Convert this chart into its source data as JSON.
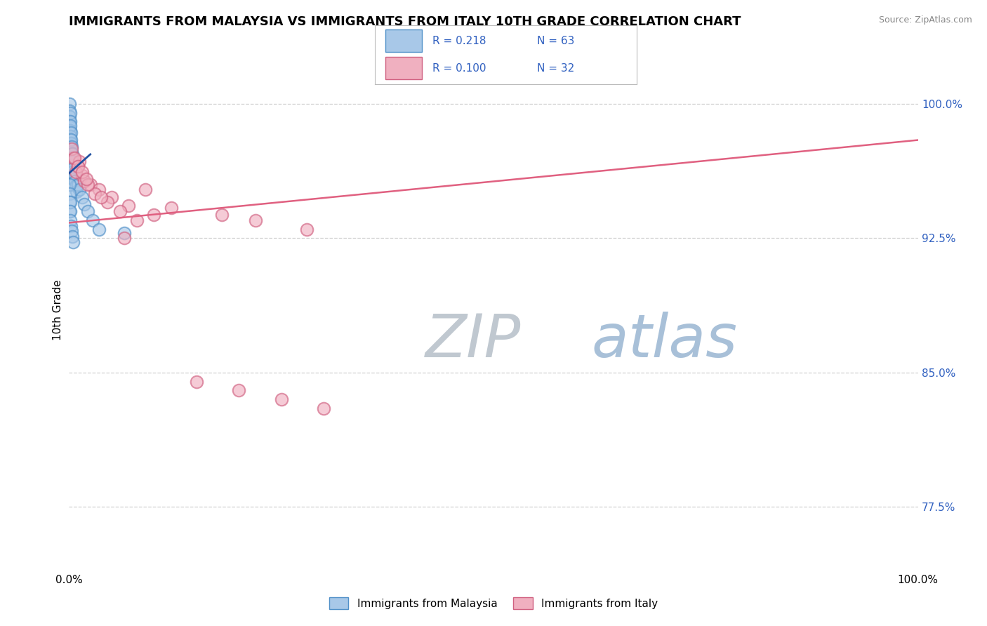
{
  "title": "IMMIGRANTS FROM MALAYSIA VS IMMIGRANTS FROM ITALY 10TH GRADE CORRELATION CHART",
  "source": "Source: ZipAtlas.com",
  "ylabel": "10th Grade",
  "xlim": [
    0,
    100
  ],
  "ylim": [
    74.0,
    103.0
  ],
  "yticks_right": [
    77.5,
    85.0,
    92.5,
    100.0
  ],
  "ytick_labels_right": [
    "77.5%",
    "85.0%",
    "92.5%",
    "100.0%"
  ],
  "grid_color": "#d0d0d0",
  "background_color": "#ffffff",
  "malaysia_color": "#a8c8e8",
  "malaysia_edge_color": "#5090c8",
  "italy_color": "#f0b0c0",
  "italy_edge_color": "#d06080",
  "malaysia_R": 0.218,
  "malaysia_N": 63,
  "italy_R": 0.1,
  "italy_N": 32,
  "malaysia_label": "Immigrants from Malaysia",
  "italy_label": "Immigrants from Italy",
  "blue_line_color": "#2050a0",
  "pink_line_color": "#e06080",
  "malaysia_x": [
    0.05,
    0.05,
    0.05,
    0.05,
    0.05,
    0.05,
    0.05,
    0.05,
    0.05,
    0.05,
    0.05,
    0.05,
    0.1,
    0.1,
    0.1,
    0.1,
    0.1,
    0.1,
    0.1,
    0.1,
    0.15,
    0.15,
    0.15,
    0.15,
    0.2,
    0.2,
    0.2,
    0.2,
    0.25,
    0.25,
    0.25,
    0.3,
    0.3,
    0.3,
    0.35,
    0.35,
    0.4,
    0.4,
    0.5,
    0.5,
    0.6,
    0.7,
    0.8,
    0.9,
    1.0,
    1.2,
    1.5,
    1.8,
    2.2,
    2.8,
    3.5,
    0.05,
    0.05,
    0.05,
    0.05,
    0.1,
    0.1,
    0.1,
    0.2,
    0.3,
    0.4,
    0.5,
    6.5
  ],
  "malaysia_y": [
    100.0,
    99.6,
    99.3,
    99.0,
    98.7,
    98.4,
    98.0,
    97.6,
    97.2,
    96.8,
    96.3,
    95.9,
    99.5,
    99.0,
    98.5,
    98.0,
    97.5,
    97.0,
    96.5,
    96.0,
    98.8,
    98.2,
    97.6,
    97.0,
    98.4,
    97.8,
    97.2,
    96.6,
    98.0,
    97.3,
    96.7,
    97.6,
    97.0,
    96.4,
    97.2,
    96.6,
    96.8,
    96.2,
    96.4,
    95.8,
    96.0,
    95.7,
    95.4,
    95.1,
    95.5,
    95.2,
    94.8,
    94.4,
    94.0,
    93.5,
    93.0,
    95.5,
    95.0,
    94.5,
    94.0,
    94.5,
    94.0,
    93.5,
    93.2,
    92.9,
    92.6,
    92.3,
    92.8
  ],
  "italy_x": [
    0.5,
    1.0,
    1.5,
    2.5,
    3.5,
    5.0,
    7.0,
    10.0,
    0.8,
    1.8,
    3.0,
    4.5,
    6.0,
    8.0,
    1.2,
    2.2,
    3.8,
    6.5,
    9.0,
    0.3,
    0.6,
    1.0,
    1.5,
    2.0,
    15.0,
    20.0,
    25.0,
    30.0,
    12.0,
    18.0,
    22.0,
    28.0
  ],
  "italy_y": [
    97.0,
    96.5,
    96.0,
    95.5,
    95.2,
    94.8,
    94.3,
    93.8,
    96.2,
    95.7,
    95.0,
    94.5,
    94.0,
    93.5,
    96.8,
    95.5,
    94.8,
    92.5,
    95.2,
    97.5,
    97.0,
    96.5,
    96.2,
    95.8,
    84.5,
    84.0,
    83.5,
    83.0,
    94.2,
    93.8,
    93.5,
    93.0
  ],
  "watermark_zip_color": "#c0c8d0",
  "watermark_atlas_color": "#a8c0d8"
}
